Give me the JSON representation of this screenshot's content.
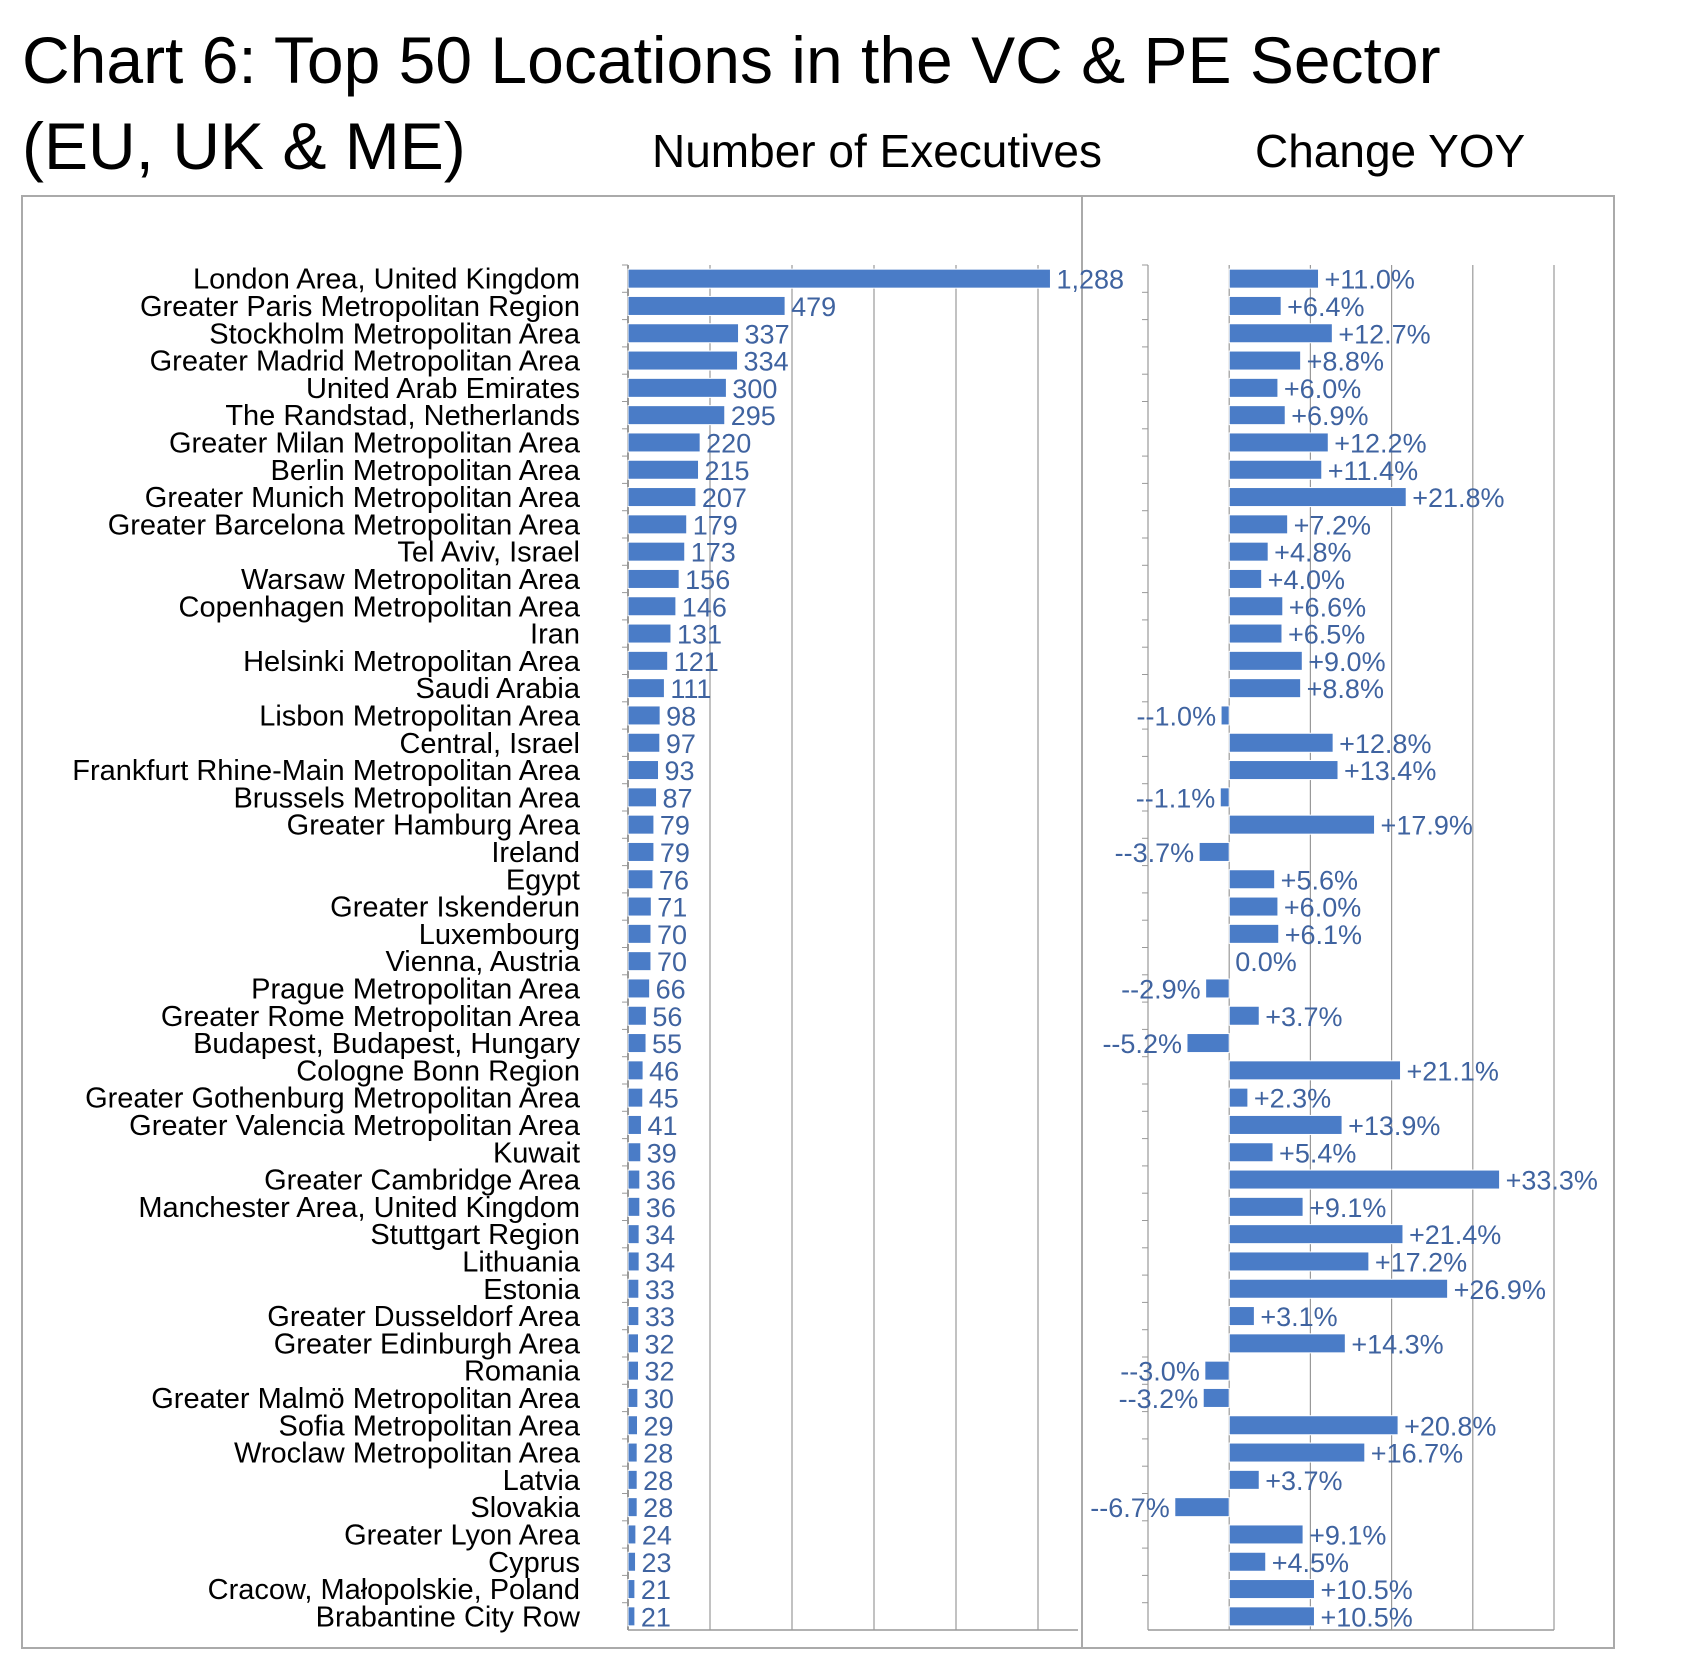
{
  "header": {
    "title_line1": "Chart 6: Top 50 Locations in the VC & PE Sector",
    "title_line2": "(EU, UK & ME)",
    "panel_left_title": "Number of Executives",
    "panel_right_title": "Change YOY"
  },
  "colors": {
    "bar": "#4a7cc7",
    "value_text": "#3f63a0",
    "grid": "#999999",
    "frame": "#aaaaaa"
  },
  "chart_data": [
    {
      "type": "bar",
      "orientation": "horizontal",
      "title": "Number of Executives",
      "xlim": [
        0,
        1500
      ],
      "grid": true,
      "categories": [
        "London Area, United Kingdom",
        "Greater Paris Metropolitan Region",
        "Stockholm Metropolitan Area",
        "Greater Madrid Metropolitan Area",
        "United Arab Emirates",
        "The Randstad, Netherlands",
        "Greater Milan Metropolitan Area",
        "Berlin Metropolitan Area",
        "Greater Munich Metropolitan Area",
        "Greater Barcelona Metropolitan Area",
        "Tel Aviv, Israel",
        "Warsaw Metropolitan Area",
        "Copenhagen Metropolitan Area",
        "Iran",
        "Helsinki Metropolitan Area",
        "Saudi Arabia",
        "Lisbon Metropolitan Area",
        "Central, Israel",
        "Frankfurt Rhine-Main Metropolitan Area",
        "Brussels Metropolitan Area",
        "Greater Hamburg Area",
        "Ireland",
        "Egypt",
        "Greater Iskenderun",
        "Luxembourg",
        "Vienna, Austria",
        "Prague Metropolitan Area",
        "Greater Rome Metropolitan Area",
        "Budapest, Budapest, Hungary",
        "Cologne Bonn Region",
        "Greater Gothenburg Metropolitan Area",
        "Greater Valencia Metropolitan Area",
        "Kuwait",
        "Greater Cambridge Area",
        "Manchester Area, United Kingdom",
        "Stuttgart Region",
        "Lithuania",
        "Estonia",
        "Greater Dusseldorf Area",
        "Greater Edinburgh Area",
        "Romania",
        "Greater Malmö Metropolitan Area",
        "Sofia Metropolitan Area",
        "Wroclaw Metropolitan Area",
        "Latvia",
        "Slovakia",
        "Greater Lyon Area",
        "Cyprus",
        "Cracow, Małopolskie, Poland",
        "Brabantine City Row"
      ],
      "values": [
        1288,
        479,
        337,
        334,
        300,
        295,
        220,
        215,
        207,
        179,
        173,
        156,
        146,
        131,
        121,
        111,
        98,
        97,
        93,
        87,
        79,
        79,
        76,
        71,
        70,
        70,
        66,
        56,
        55,
        46,
        45,
        41,
        39,
        36,
        36,
        34,
        34,
        33,
        33,
        32,
        32,
        30,
        29,
        28,
        28,
        28,
        24,
        23,
        21,
        21
      ],
      "labels": [
        "1,288",
        "479",
        "337",
        "334",
        "300",
        "295",
        "220",
        "215",
        "207",
        "179",
        "173",
        "156",
        "146",
        "131",
        "121",
        "111",
        "98",
        "97",
        "93",
        "87",
        "79",
        "79",
        "76",
        "71",
        "70",
        "70",
        "66",
        "56",
        "55",
        "46",
        "45",
        "41",
        "39",
        "36",
        "36",
        "34",
        "34",
        "33",
        "33",
        "32",
        "32",
        "30",
        "29",
        "28",
        "28",
        "28",
        "24",
        "23",
        "21",
        "21"
      ]
    },
    {
      "type": "bar",
      "orientation": "horizontal",
      "title": "Change YOY",
      "xlim": [
        -10,
        40
      ],
      "grid": true,
      "values": [
        11.0,
        6.4,
        12.7,
        8.8,
        6.0,
        6.9,
        12.2,
        11.4,
        21.8,
        7.2,
        4.8,
        4.0,
        6.6,
        6.5,
        9.0,
        8.8,
        -1.0,
        12.8,
        13.4,
        -1.1,
        17.9,
        -3.7,
        5.6,
        6.0,
        6.1,
        0.0,
        -2.9,
        3.7,
        -5.2,
        21.1,
        2.3,
        13.9,
        5.4,
        33.3,
        9.1,
        21.4,
        17.2,
        26.9,
        3.1,
        14.3,
        -3.0,
        -3.2,
        20.8,
        16.7,
        3.7,
        -6.7,
        9.1,
        4.5,
        10.5,
        10.5
      ],
      "labels": [
        "+11.0%",
        "+6.4%",
        "+12.7%",
        "+8.8%",
        "+6.0%",
        "+6.9%",
        "+12.2%",
        "+11.4%",
        "+21.8%",
        "+7.2%",
        "+4.8%",
        "+4.0%",
        "+6.6%",
        "+6.5%",
        "+9.0%",
        "+8.8%",
        "--1.0%",
        "+12.8%",
        "+13.4%",
        "--1.1%",
        "+17.9%",
        "--3.7%",
        "+5.6%",
        "+6.0%",
        "+6.1%",
        "0.0%",
        "--2.9%",
        "+3.7%",
        "--5.2%",
        "+21.1%",
        "+2.3%",
        "+13.9%",
        "+5.4%",
        "+33.3%",
        "+9.1%",
        "+21.4%",
        "+17.2%",
        "+26.9%",
        "+3.1%",
        "+14.3%",
        "--3.0%",
        "--3.2%",
        "+20.8%",
        "+16.7%",
        "+3.7%",
        "--6.7%",
        "+9.1%",
        "+4.5%",
        "+10.5%",
        "+10.5%"
      ]
    }
  ]
}
